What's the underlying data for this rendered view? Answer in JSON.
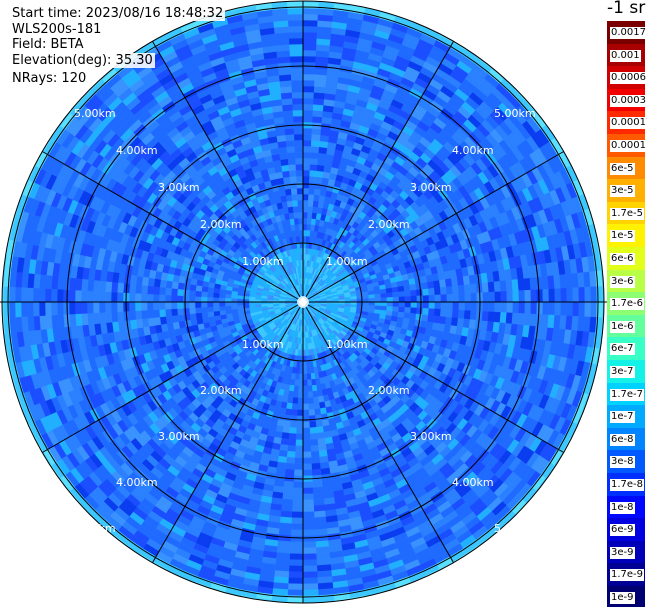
{
  "header": {
    "start_time": "Start time: 2023/08/16 18:48:32",
    "instrument": "WLS200s-181",
    "field": "Field: BETA",
    "elevation": "Elevation(deg): 35.30",
    "nrays": "NRays: 120"
  },
  "colorbar": {
    "unit": "-1 sr",
    "labels": [
      "0.0017",
      "0.001",
      "0.0006",
      "0.0003",
      "0.00017",
      "0.0001",
      "6e-5",
      "3e-5",
      "1.7e-5",
      "1e-5",
      "6e-6",
      "3e-6",
      "1.7e-6",
      "1e-6",
      "6e-7",
      "3e-7",
      "1.7e-7",
      "1e-7",
      "6e-8",
      "3e-8",
      "1.7e-8",
      "1e-8",
      "6e-9",
      "3e-9",
      "1.7e-9",
      "1e-9"
    ],
    "colors": [
      "#7a0000",
      "#a80000",
      "#d00000",
      "#f20000",
      "#ff2a00",
      "#ff5a00",
      "#ff8c00",
      "#ffb000",
      "#ffd400",
      "#fff200",
      "#e2ff1c",
      "#b8ff46",
      "#8cff72",
      "#62ff9c",
      "#38ffc6",
      "#14f2e8",
      "#00d2ff",
      "#00aaff",
      "#0084ff",
      "#005aff",
      "#0030ff",
      "#0008ff",
      "#0000e0",
      "#0000b8",
      "#000094",
      "#000070"
    ]
  },
  "chart_data": {
    "type": "heatmap",
    "projection": "polar PPI scan",
    "field": "BETA",
    "unit": "sr^-1",
    "elevation_deg": 35.3,
    "n_rays": 120,
    "start_time": "2023/08/16 18:48:32",
    "scale": "log",
    "range_rings_km": [
      "1.00km",
      "2.00km",
      "3.00km",
      "4.00km",
      "5.00km"
    ],
    "radial_lines_every_deg": 30,
    "grid": true,
    "colorbar_ticks": [
      "0.0017",
      "0.001",
      "0.0006",
      "0.0003",
      "0.00017",
      "0.0001",
      "6e-5",
      "3e-5",
      "1.7e-5",
      "1e-5",
      "6e-6",
      "3e-6",
      "1.7e-6",
      "1e-6",
      "6e-7",
      "3e-7",
      "1.7e-7",
      "1e-7",
      "6e-8",
      "3e-8",
      "1.7e-8",
      "1e-8",
      "6e-9",
      "3e-9",
      "1.7e-9",
      "1e-9"
    ],
    "dominant_range": [
      "3e-8",
      "1.7e-7"
    ],
    "near_range_value": "1.7e-7"
  }
}
